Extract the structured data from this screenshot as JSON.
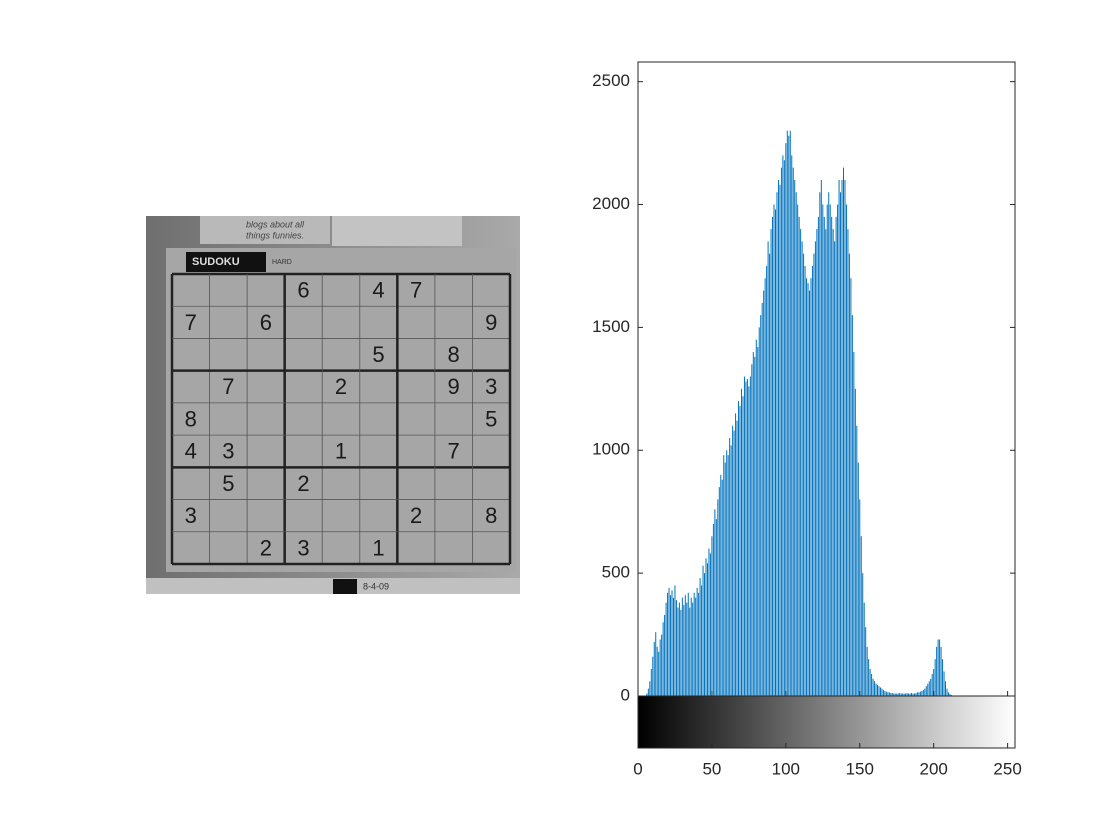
{
  "image": {
    "caption_lines": [
      "blogs about all",
      "things funnies."
    ],
    "label": "SUDOKU",
    "level": "HARD",
    "date": "8-4-09",
    "grid": [
      [
        null,
        null,
        null,
        6,
        null,
        4,
        7,
        null,
        null
      ],
      [
        7,
        null,
        6,
        null,
        null,
        null,
        null,
        null,
        9
      ],
      [
        null,
        null,
        null,
        null,
        null,
        5,
        null,
        8,
        null
      ],
      [
        null,
        7,
        null,
        null,
        2,
        null,
        null,
        9,
        3
      ],
      [
        8,
        null,
        null,
        null,
        null,
        null,
        null,
        null,
        5
      ],
      [
        4,
        3,
        null,
        null,
        1,
        null,
        null,
        7,
        null
      ],
      [
        null,
        5,
        null,
        2,
        null,
        null,
        null,
        null,
        null
      ],
      [
        3,
        null,
        null,
        null,
        null,
        null,
        2,
        null,
        8
      ],
      [
        null,
        null,
        2,
        3,
        null,
        1,
        null,
        null,
        null
      ]
    ]
  },
  "chart_data": {
    "type": "stem",
    "color": "#0072bd",
    "x": [
      0,
      1,
      2,
      3,
      4,
      5,
      6,
      7,
      8,
      9,
      10,
      11,
      12,
      13,
      14,
      15,
      16,
      17,
      18,
      19,
      20,
      21,
      22,
      23,
      24,
      25,
      26,
      27,
      28,
      29,
      30,
      31,
      32,
      33,
      34,
      35,
      36,
      37,
      38,
      39,
      40,
      41,
      42,
      43,
      44,
      45,
      46,
      47,
      48,
      49,
      50,
      51,
      52,
      53,
      54,
      55,
      56,
      57,
      58,
      59,
      60,
      61,
      62,
      63,
      64,
      65,
      66,
      67,
      68,
      69,
      70,
      71,
      72,
      73,
      74,
      75,
      76,
      77,
      78,
      79,
      80,
      81,
      82,
      83,
      84,
      85,
      86,
      87,
      88,
      89,
      90,
      91,
      92,
      93,
      94,
      95,
      96,
      97,
      98,
      99,
      100,
      101,
      102,
      103,
      104,
      105,
      106,
      107,
      108,
      109,
      110,
      111,
      112,
      113,
      114,
      115,
      116,
      117,
      118,
      119,
      120,
      121,
      122,
      123,
      124,
      125,
      126,
      127,
      128,
      129,
      130,
      131,
      132,
      133,
      134,
      135,
      136,
      137,
      138,
      139,
      140,
      141,
      142,
      143,
      144,
      145,
      146,
      147,
      148,
      149,
      150,
      151,
      152,
      153,
      154,
      155,
      156,
      157,
      158,
      159,
      160,
      161,
      162,
      163,
      164,
      165,
      166,
      167,
      168,
      169,
      170,
      171,
      172,
      173,
      174,
      175,
      176,
      177,
      178,
      179,
      180,
      181,
      182,
      183,
      184,
      185,
      186,
      187,
      188,
      189,
      190,
      191,
      192,
      193,
      194,
      195,
      196,
      197,
      198,
      199,
      200,
      201,
      202,
      203,
      204,
      205,
      206,
      207,
      208,
      209,
      210,
      211,
      212,
      213,
      214,
      215,
      216,
      217,
      218,
      219,
      220,
      221,
      222,
      223,
      224,
      225,
      226,
      227,
      228,
      229,
      230,
      231,
      232,
      233,
      234,
      235,
      236,
      237,
      238,
      239,
      240,
      241,
      242,
      243,
      244,
      245,
      246,
      247,
      248,
      249,
      250,
      251,
      252,
      253,
      254,
      255
    ],
    "values": [
      0,
      0,
      0,
      0,
      0,
      2,
      10,
      30,
      60,
      110,
      160,
      220,
      260,
      200,
      180,
      230,
      250,
      300,
      330,
      380,
      420,
      440,
      410,
      430,
      400,
      450,
      390,
      360,
      380,
      350,
      400,
      370,
      410,
      380,
      420,
      360,
      400,
      380,
      420,
      400,
      440,
      420,
      480,
      450,
      530,
      500,
      560,
      540,
      600,
      580,
      650,
      700,
      760,
      720,
      800,
      850,
      900,
      880,
      980,
      950,
      1000,
      980,
      1050,
      1020,
      1100,
      1080,
      1150,
      1120,
      1200,
      1180,
      1250,
      1220,
      1300,
      1280,
      1290,
      1260,
      1300,
      1350,
      1400,
      1380,
      1450,
      1420,
      1500,
      1550,
      1600,
      1650,
      1700,
      1750,
      1850,
      1800,
      1900,
      1950,
      2000,
      1980,
      2050,
      2100,
      2080,
      2150,
      2200,
      2180,
      2250,
      2300,
      2280,
      2300,
      2200,
      2150,
      2100,
      2050,
      2000,
      1950,
      1900,
      1850,
      1800,
      1750,
      1700,
      1680,
      1650,
      1700,
      1750,
      1800,
      1850,
      1900,
      1950,
      2050,
      2100,
      2000,
      1950,
      1900,
      2000,
      2050,
      2000,
      1950,
      1900,
      1850,
      1950,
      2000,
      2100,
      2050,
      2100,
      2150,
      2100,
      2000,
      1900,
      1800,
      1700,
      1550,
      1400,
      1250,
      1100,
      950,
      800,
      650,
      500,
      380,
      280,
      200,
      150,
      110,
      90,
      70,
      60,
      50,
      45,
      40,
      35,
      30,
      25,
      20,
      18,
      15,
      15,
      12,
      12,
      10,
      10,
      10,
      10,
      12,
      10,
      10,
      10,
      10,
      12,
      10,
      10,
      12,
      10,
      10,
      12,
      15,
      15,
      18,
      20,
      25,
      30,
      40,
      50,
      60,
      70,
      90,
      110,
      150,
      200,
      230,
      230,
      200,
      150,
      100,
      60,
      30,
      15,
      8,
      4,
      2,
      0,
      0,
      0,
      0,
      0,
      0,
      0,
      0,
      0,
      0,
      0,
      0,
      0,
      0,
      0,
      0,
      0,
      0,
      0,
      0,
      0,
      0,
      0,
      0,
      0,
      0,
      0,
      0,
      0,
      0,
      0,
      0,
      0,
      0,
      0,
      0,
      0,
      0,
      0,
      0,
      0,
      0
    ],
    "xlim": [
      0,
      255
    ],
    "xticks": [
      0,
      50,
      100,
      150,
      200,
      250
    ],
    "ylim": [
      0,
      2580
    ],
    "yticks": [
      0,
      500,
      1000,
      1500,
      2000,
      2500
    ]
  }
}
